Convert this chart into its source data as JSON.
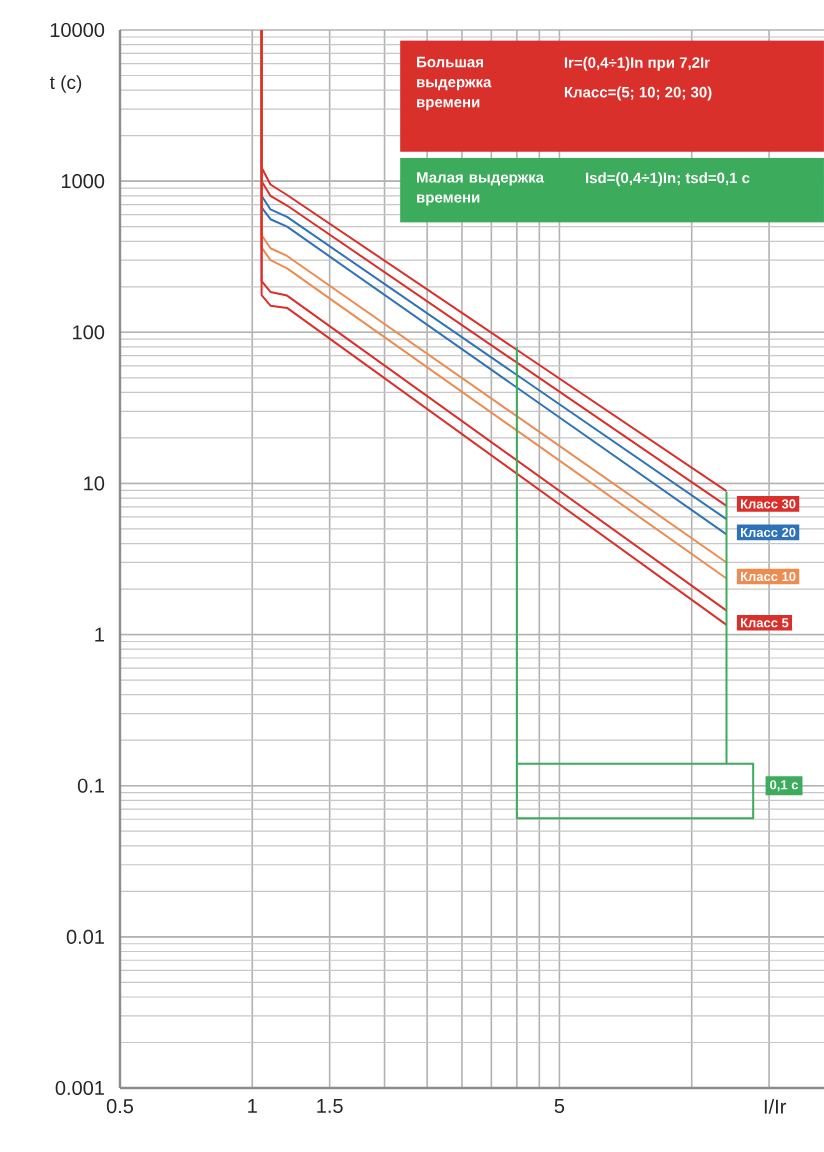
{
  "chart_data": {
    "type": "line",
    "xlabel": "I/Ir",
    "ylabel": "t (c)",
    "log": "xy",
    "grid": true,
    "marker": "none",
    "xlim": [
      0.5,
      20
    ],
    "ylim": [
      0.001,
      10000
    ],
    "xticks": [
      0.5,
      1,
      1.5,
      {
        "value": 2,
        "label": null
      },
      {
        "value": 2.5,
        "label": null
      },
      {
        "value": 3,
        "label": null
      },
      {
        "value": 3.5,
        "label": null
      },
      {
        "value": 4,
        "label": null
      },
      {
        "value": 4.5,
        "label": null
      },
      5,
      {
        "value": 10,
        "label": null
      },
      {
        "value": 15,
        "label": null
      }
    ],
    "yticks": [
      0.001,
      0.01,
      0.1,
      1,
      10,
      100,
      1000,
      10000
    ],
    "series": [
      {
        "name": "Класс 30",
        "color": "#d9302c",
        "x": [
          1.05,
          1.05,
          1.1,
          1.2,
          12
        ],
        "values": [
          10000,
          1230,
          950,
          810,
          8.9
        ]
      },
      {
        "color": "#d9302c",
        "x": [
          1.05,
          1.05,
          1.1,
          1.2,
          12
        ],
        "values": [
          10000,
          1000,
          800,
          690,
          7.1
        ]
      },
      {
        "name": "Класс 20",
        "color": "#2e72b8",
        "x": [
          1.05,
          1.1,
          1.2,
          12
        ],
        "values": [
          800,
          650,
          580,
          5.8
        ]
      },
      {
        "color": "#2e72b8",
        "x": [
          1.05,
          1.1,
          1.2,
          12
        ],
        "values": [
          670,
          560,
          500,
          4.6
        ]
      },
      {
        "name": "Класс 10",
        "color": "#ec8c50",
        "x": [
          1.05,
          1.05,
          1.1,
          1.2,
          12
        ],
        "values": [
          10000,
          440,
          360,
          320,
          3.0
        ]
      },
      {
        "color": "#ec8c50",
        "x": [
          1.05,
          1.05,
          1.1,
          1.2,
          12
        ],
        "values": [
          10000,
          365,
          300,
          265,
          2.35
        ]
      },
      {
        "name": "Класс 5",
        "color": "#d9302c",
        "x": [
          1.05,
          1.05,
          1.1,
          1.2,
          12
        ],
        "values": [
          10000,
          218,
          185,
          175,
          1.44
        ]
      },
      {
        "color": "#d9302c",
        "x": [
          1.05,
          1.05,
          1.1,
          1.2,
          12
        ],
        "values": [
          10000,
          176,
          150,
          145,
          1.16
        ]
      },
      {
        "color": "#3cab5b",
        "x": [
          4,
          4,
          13.8,
          13.8,
          4
        ],
        "values": [
          80,
          0.061,
          0.061,
          0.14,
          0.14
        ]
      },
      {
        "color": "#3cab5b",
        "x": [
          12,
          12
        ],
        "values": [
          8.8,
          0.14
        ]
      }
    ],
    "annotations": [
      "Большая выдержка времени",
      "Ir=(0,4÷1)In при 7,2Ir",
      "Класс=(5; 10; 20; 30)",
      "Малая выдержка времени",
      "Isd=(0,4÷1)In; tsd=0,1 с",
      {
        "text": "0,1 с",
        "x": 13.8,
        "y": 0.1
      }
    ]
  }
}
